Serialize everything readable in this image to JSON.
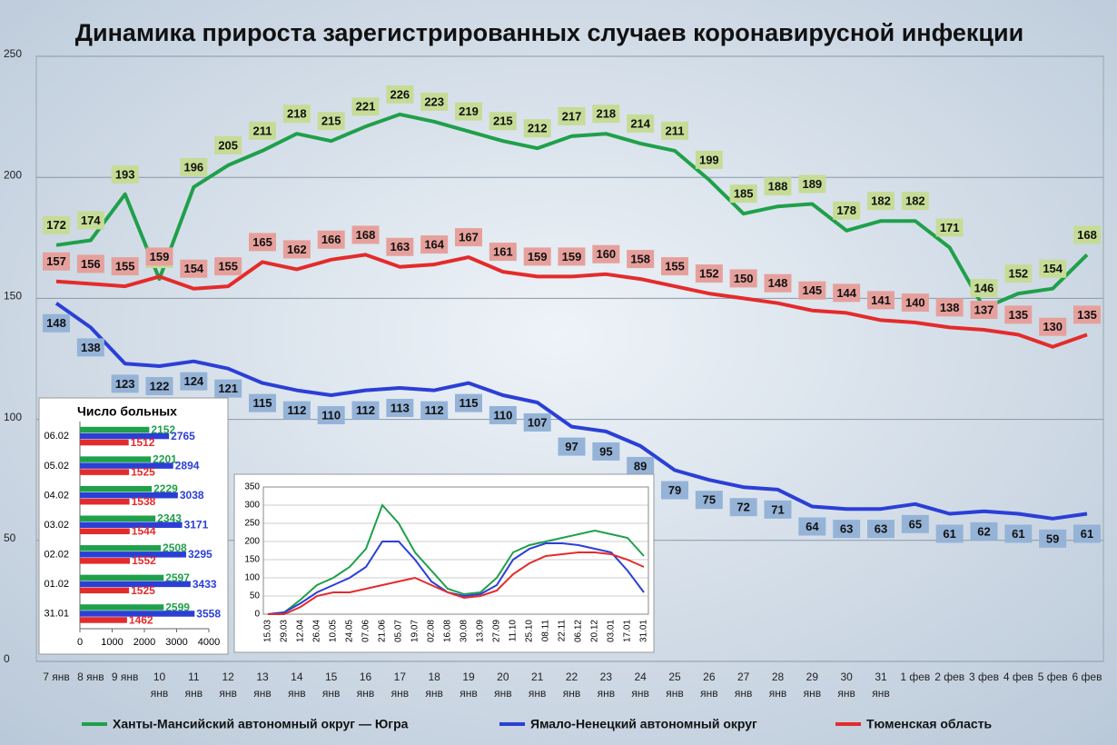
{
  "chart_data": [
    {
      "type": "line",
      "title": "Динамика прироста зарегистрированных случаев коронавирусной инфекции",
      "categories": [
        "7 янв",
        "8 янв",
        "9 янв",
        "10 янв",
        "11 янв",
        "12 янв",
        "13 янв",
        "14 янв",
        "15 янв",
        "16 янв",
        "17 янв",
        "18 янв",
        "19 янв",
        "20 янв",
        "21 янв",
        "22 янв",
        "23 янв",
        "24 янв",
        "25 янв",
        "26 янв",
        "27 янв",
        "28 янв",
        "29 янв",
        "30 янв",
        "31 янв",
        "1 фев",
        "2 фев",
        "3 фев",
        "4 фев",
        "5 фев",
        "6 фев"
      ],
      "series": [
        {
          "name": "Ханты-Мансийский автономный округ — Югра",
          "color": "#1fa04a",
          "label_color": "#c6dc96",
          "values": [
            172,
            174,
            193,
            158,
            196,
            205,
            211,
            218,
            215,
            221,
            226,
            223,
            219,
            215,
            212,
            217,
            218,
            214,
            211,
            199,
            185,
            188,
            189,
            178,
            182,
            182,
            171,
            146,
            152,
            154,
            168
          ]
        },
        {
          "name": "Ямало-Ненецкий автономный округ",
          "color": "#2b3fd6",
          "label_color": "#95b3d7",
          "values": [
            148,
            138,
            123,
            122,
            124,
            121,
            115,
            112,
            110,
            112,
            113,
            112,
            115,
            110,
            107,
            97,
            95,
            89,
            79,
            75,
            72,
            71,
            64,
            63,
            63,
            65,
            61,
            62,
            61,
            59,
            61
          ]
        },
        {
          "name": "Тюменская область",
          "color": "#e42b2b",
          "label_color": "#e6a09c",
          "values": [
            157,
            156,
            155,
            159,
            154,
            155,
            165,
            162,
            166,
            168,
            163,
            164,
            167,
            161,
            159,
            159,
            160,
            158,
            155,
            152,
            150,
            148,
            145,
            144,
            141,
            140,
            138,
            137,
            135,
            130,
            135
          ]
        }
      ],
      "ylim": [
        0,
        250
      ],
      "yticks": [
        0,
        50,
        100,
        150,
        200,
        250
      ],
      "grid": true
    },
    {
      "type": "bar",
      "orientation": "horizontal",
      "title": "Число больных",
      "categories": [
        "06.02",
        "05.02",
        "04.02",
        "03.02",
        "02.02",
        "01.02",
        "31.01"
      ],
      "series": [
        {
          "color": "#1fa04a",
          "values": [
            2152,
            2201,
            2229,
            2343,
            2508,
            2597,
            2599
          ]
        },
        {
          "color": "#2b3fd6",
          "values": [
            2765,
            2894,
            3038,
            3171,
            3295,
            3433,
            3558
          ]
        },
        {
          "color": "#e42b2b",
          "values": [
            1512,
            1525,
            1538,
            1544,
            1552,
            1525,
            1462
          ]
        }
      ],
      "xlim": [
        0,
        4000
      ],
      "xticks": [
        0,
        1000,
        2000,
        3000,
        4000
      ]
    },
    {
      "type": "line",
      "categories": [
        "15.03",
        "29.03",
        "12.04",
        "26.04",
        "10.05",
        "24.05",
        "07.06",
        "21.06",
        "05.07",
        "19.07",
        "02.08",
        "16.08",
        "30.08",
        "13.09",
        "27.09",
        "11.10",
        "25.10",
        "08.11",
        "22.11",
        "06.12",
        "20.12",
        "03.01",
        "17.01",
        "31.01"
      ],
      "series": [
        {
          "color": "#1fa04a",
          "values": [
            0,
            5,
            40,
            80,
            100,
            130,
            180,
            300,
            250,
            170,
            120,
            70,
            55,
            60,
            100,
            170,
            190,
            200,
            210,
            220,
            230,
            220,
            210,
            160
          ]
        },
        {
          "color": "#2b3fd6",
          "values": [
            0,
            5,
            30,
            60,
            80,
            100,
            130,
            200,
            200,
            150,
            90,
            60,
            50,
            55,
            80,
            150,
            180,
            195,
            195,
            190,
            180,
            170,
            120,
            60
          ]
        },
        {
          "color": "#e42b2b",
          "values": [
            0,
            0,
            20,
            50,
            60,
            60,
            70,
            80,
            90,
            100,
            80,
            60,
            45,
            50,
            65,
            110,
            140,
            160,
            165,
            170,
            170,
            165,
            150,
            130
          ]
        }
      ],
      "ylim": [
        0,
        350
      ],
      "yticks": [
        0,
        50,
        100,
        150,
        200,
        250,
        300,
        350
      ],
      "grid": true
    }
  ]
}
